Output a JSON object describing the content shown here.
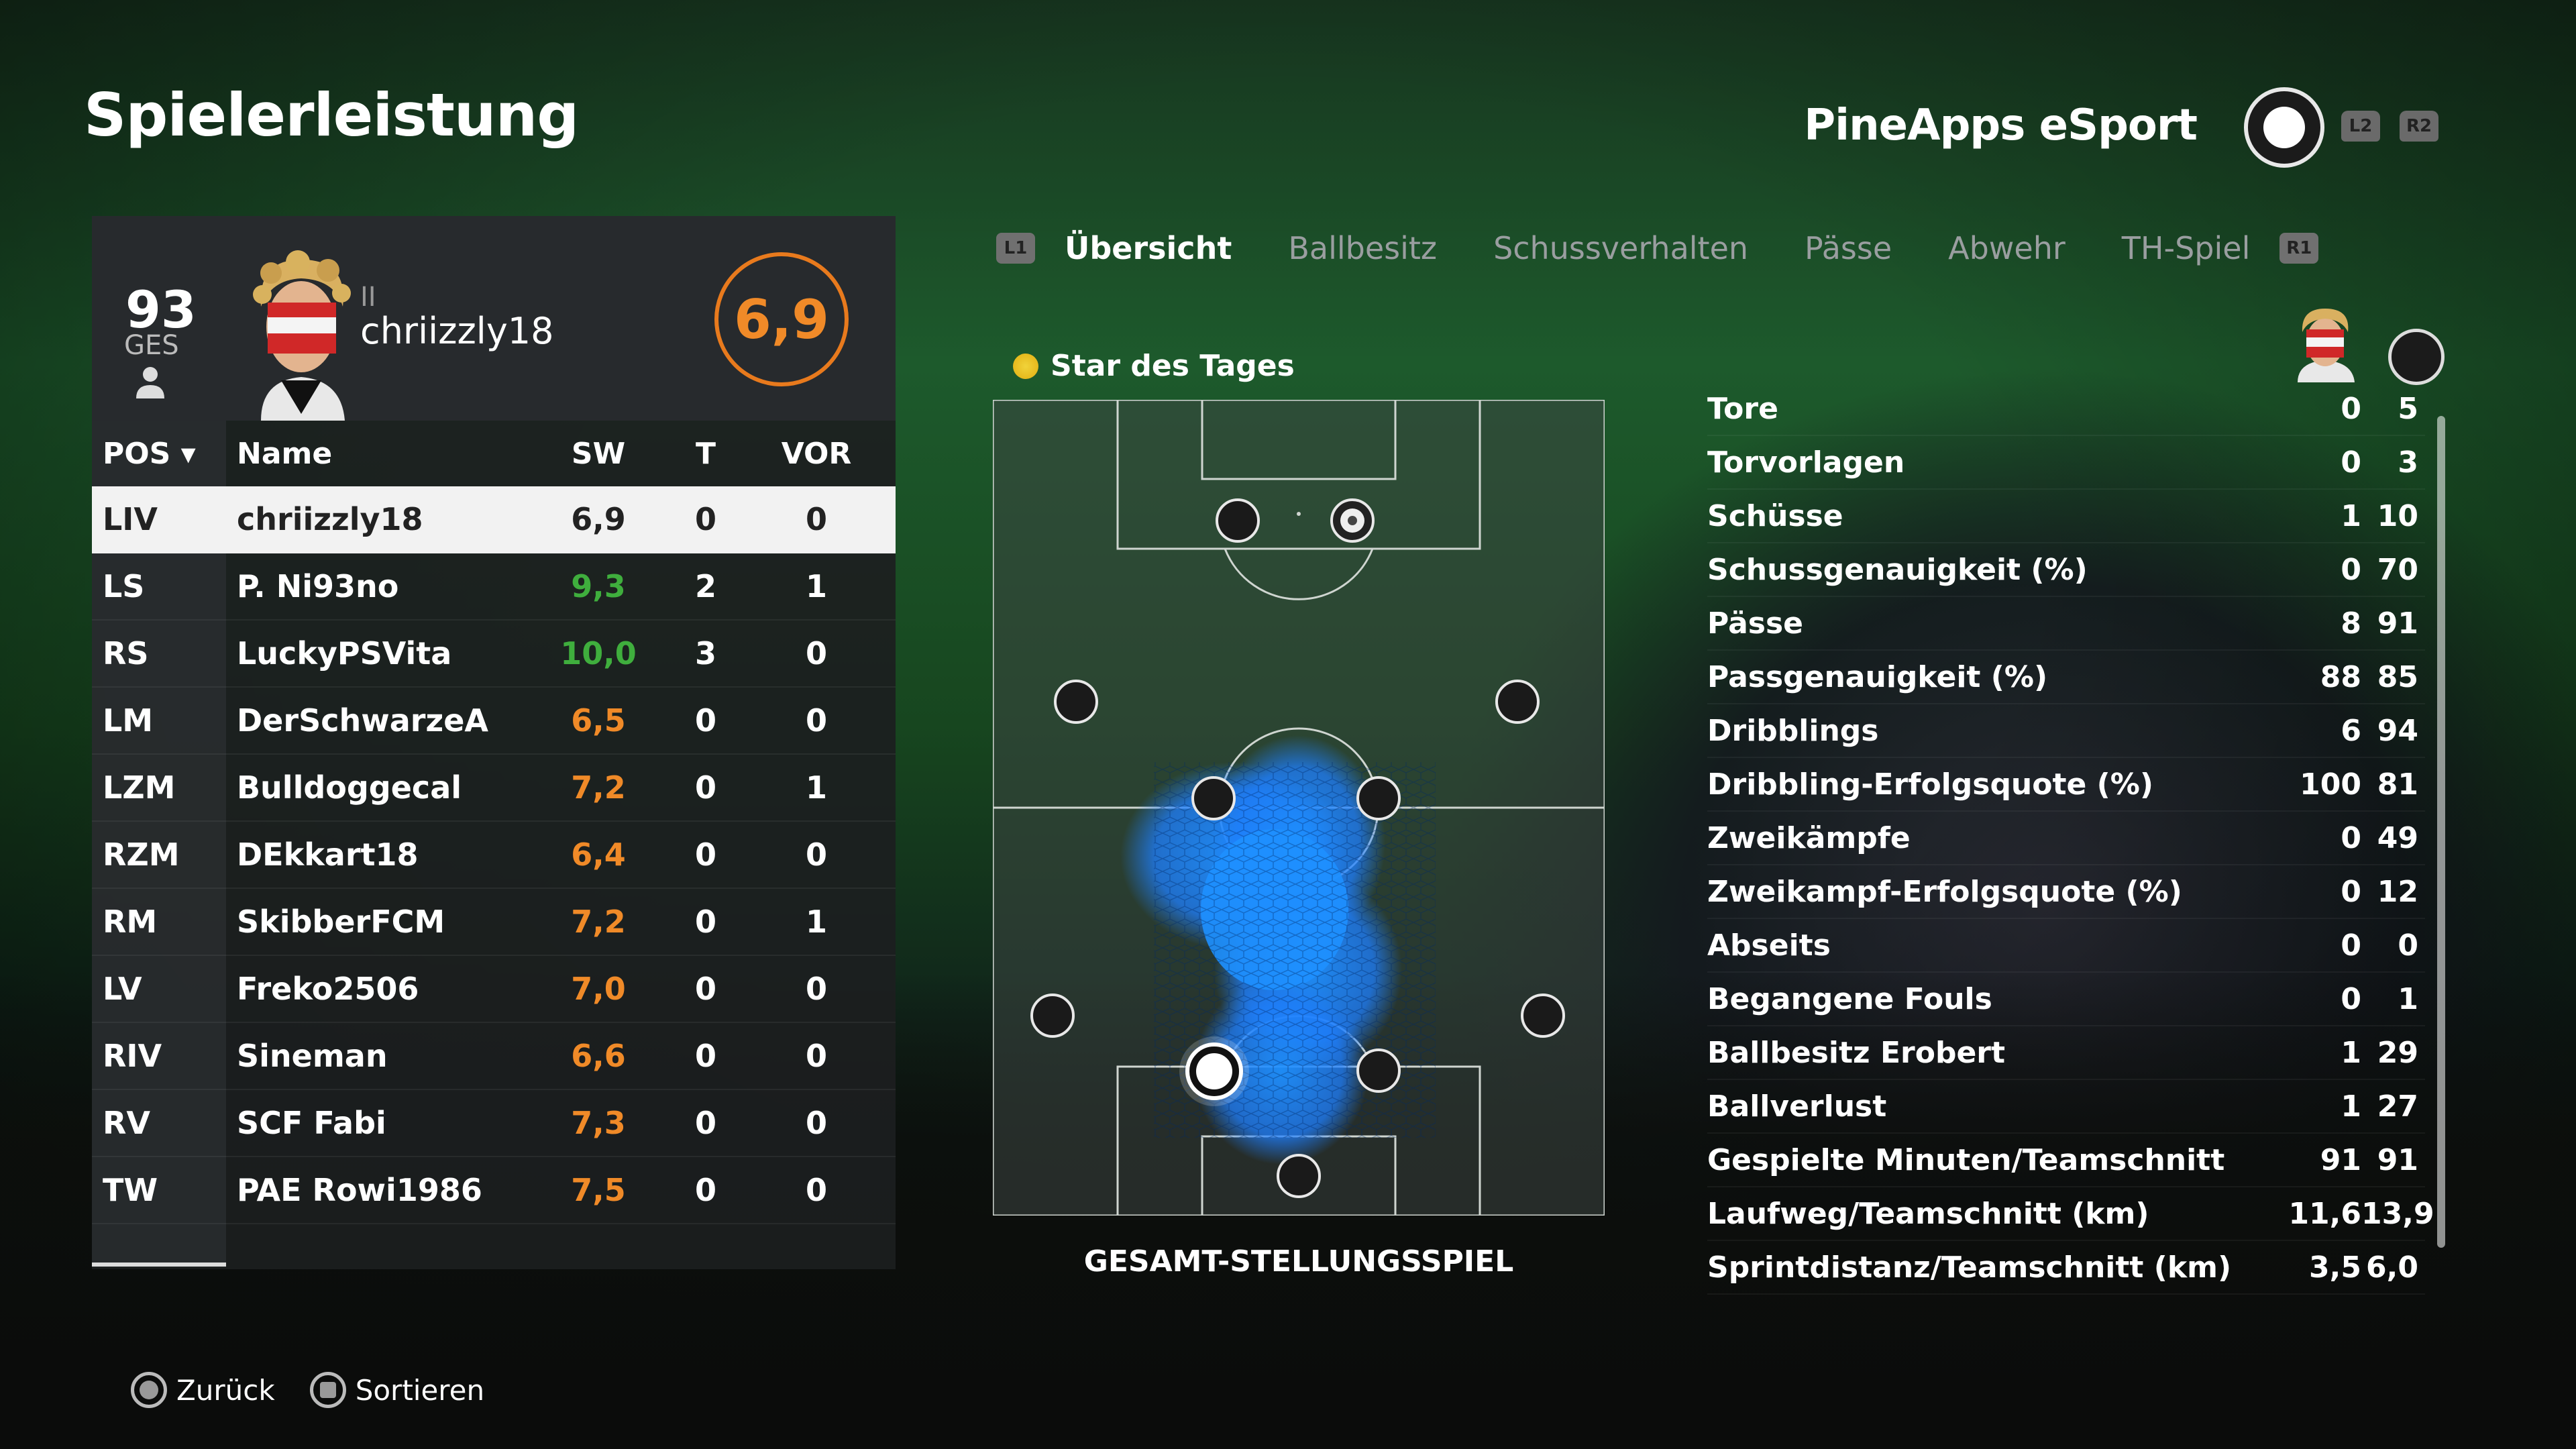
{
  "title": "Spielerleistung",
  "club": {
    "name": "PineApps eSport",
    "shoulder_left": "L2",
    "shoulder_right": "R2"
  },
  "player": {
    "overall": "93",
    "overall_label": "GES",
    "name": "chriizzly18",
    "bars": "II",
    "rating": "6,9"
  },
  "table": {
    "headers": {
      "pos": "POS ▾",
      "name": "Name",
      "sw": "SW",
      "t": "T",
      "vor": "VOR"
    },
    "rows": [
      {
        "pos": "LIV",
        "name": "chriizzly18",
        "sw": "6,9",
        "t": "0",
        "vor": "0",
        "color": "#222222"
      },
      {
        "pos": "LS",
        "name": "P. Ni93no",
        "sw": "9,3",
        "t": "2",
        "vor": "1",
        "color": "#3fae3d"
      },
      {
        "pos": "RS",
        "name": "LuckyPSVita",
        "sw": "10,0",
        "t": "3",
        "vor": "0",
        "color": "#3fae3d"
      },
      {
        "pos": "LM",
        "name": "DerSchwarzeA",
        "sw": "6,5",
        "t": "0",
        "vor": "0",
        "color": "#f08a28"
      },
      {
        "pos": "LZM",
        "name": "Bulldoggecal",
        "sw": "7,2",
        "t": "0",
        "vor": "1",
        "color": "#f08a28"
      },
      {
        "pos": "RZM",
        "name": "DEkkart18",
        "sw": "6,4",
        "t": "0",
        "vor": "0",
        "color": "#f08a28"
      },
      {
        "pos": "RM",
        "name": "SkibberFCM",
        "sw": "7,2",
        "t": "0",
        "vor": "1",
        "color": "#f08a28"
      },
      {
        "pos": "LV",
        "name": "Freko2506",
        "sw": "7,0",
        "t": "0",
        "vor": "0",
        "color": "#f08a28"
      },
      {
        "pos": "RIV",
        "name": "Sineman",
        "sw": "6,6",
        "t": "0",
        "vor": "0",
        "color": "#f08a28"
      },
      {
        "pos": "RV",
        "name": "SCF  Fabi",
        "sw": "7,3",
        "t": "0",
        "vor": "0",
        "color": "#f08a28"
      },
      {
        "pos": "TW",
        "name": "PAE Rowi1986",
        "sw": "7,5",
        "t": "0",
        "vor": "0",
        "color": "#f08a28"
      }
    ]
  },
  "tabs": {
    "left_button": "L1",
    "right_button": "R1",
    "items": [
      "Übersicht",
      "Ballbesitz",
      "Schussverhalten",
      "Pässe",
      "Abwehr",
      "TH-Spiel"
    ],
    "active": "Übersicht"
  },
  "star_of_day": "Star des Tages",
  "pitch_label": "GESAMT-STELLUNGSSPIEL",
  "stats": [
    {
      "label": "Tore",
      "player": "0",
      "team": "5"
    },
    {
      "label": "Torvorlagen",
      "player": "0",
      "team": "3"
    },
    {
      "label": "Schüsse",
      "player": "1",
      "team": "10"
    },
    {
      "label": "Schussgenauigkeit (%)",
      "player": "0",
      "team": "70"
    },
    {
      "label": "Pässe",
      "player": "8",
      "team": "91"
    },
    {
      "label": "Passgenauigkeit (%)",
      "player": "88",
      "team": "85"
    },
    {
      "label": "Dribblings",
      "player": "6",
      "team": "94"
    },
    {
      "label": "Dribbling-Erfolgsquote (%)",
      "player": "100",
      "team": "81"
    },
    {
      "label": "Zweikämpfe",
      "player": "0",
      "team": "49"
    },
    {
      "label": "Zweikampf-Erfolgsquote (%)",
      "player": "0",
      "team": "12"
    },
    {
      "label": "Abseits",
      "player": "0",
      "team": "0"
    },
    {
      "label": "Begangene Fouls",
      "player": "0",
      "team": "1"
    },
    {
      "label": "Ballbesitz Erobert",
      "player": "1",
      "team": "29"
    },
    {
      "label": "Ballverlust",
      "player": "1",
      "team": "27"
    },
    {
      "label": "Gespielte Minuten/Teamschnitt",
      "player": "91",
      "team": "91"
    },
    {
      "label": "Laufweg/Teamschnitt (km)",
      "player": "11,6",
      "team": "13,9"
    },
    {
      "label": "Sprintdistanz/Teamschnitt (km)",
      "player": "3,5",
      "team": "6,0"
    }
  ],
  "footer": {
    "back": "Zurück",
    "sort": "Sortieren"
  },
  "colors": {
    "accent_orange": "#f08a28",
    "good_green": "#3fae3d",
    "heat_blue": "#1e90ff"
  }
}
